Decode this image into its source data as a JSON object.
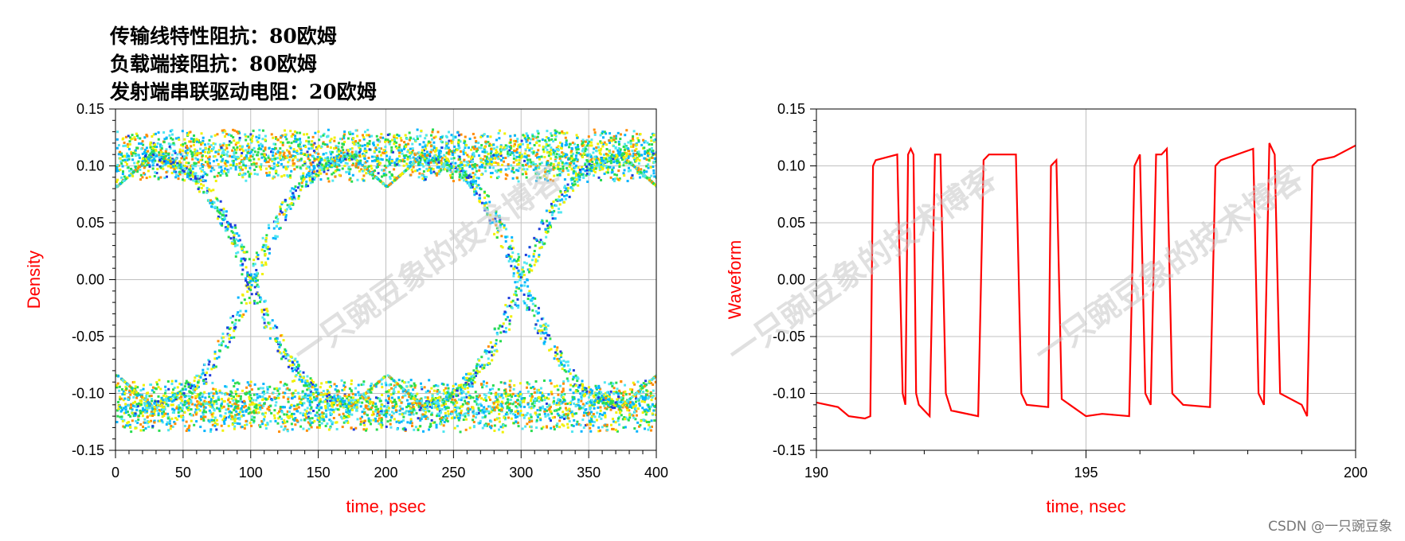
{
  "notes": [
    "传输线特性阻抗：80欧姆",
    "负载端接阻抗：80欧姆",
    "发射端串联驱动电阻：20欧姆"
  ],
  "watermark": "一只豌豆象的技术博客",
  "credit": "CSDN @一只豌豆象",
  "colors": {
    "axis_title": "#ff0000",
    "waveform": "#ff0000",
    "grid": "#c0c0c0"
  },
  "chart_data": [
    {
      "type": "heatmap",
      "title": "",
      "xlabel": "time, psec",
      "ylabel": "Density",
      "xlim": [
        0,
        400
      ],
      "ylim": [
        -0.15,
        0.15
      ],
      "x_ticks": [
        "0",
        "50",
        "100",
        "150",
        "200",
        "250",
        "300",
        "350",
        "400"
      ],
      "y_ticks": [
        "0.15",
        "0.10",
        "0.05",
        "0.00",
        "-0.05",
        "-0.10",
        "-0.15"
      ],
      "grid": true,
      "unit_interval_ps": 200,
      "crossings_ps": [
        0,
        100,
        300
      ],
      "levels": {
        "high": 0.11,
        "low": -0.11
      },
      "colormap": [
        "#1e3cdc",
        "#00b4ff",
        "#50e6f0",
        "#28dc50",
        "#f0f000",
        "#ff8c00"
      ]
    },
    {
      "type": "line",
      "title": "",
      "xlabel": "time, nsec",
      "ylabel": "Waveform",
      "xlim": [
        190,
        200
      ],
      "ylim": [
        -0.15,
        0.15
      ],
      "x_ticks": [
        "190",
        "195",
        "200"
      ],
      "y_ticks": [
        "0.15",
        "0.10",
        "0.05",
        "0.00",
        "-0.05",
        "-0.10",
        "-0.15"
      ],
      "grid": true,
      "series": [
        {
          "x": [
            190.0,
            190.4,
            190.6,
            190.9,
            191.0,
            191.05,
            191.1,
            191.5,
            191.6,
            191.65,
            191.7,
            191.75,
            191.8,
            191.85,
            191.9,
            192.1,
            192.2,
            192.3,
            192.4,
            192.5,
            193.0,
            193.1,
            193.2,
            193.7,
            193.8,
            193.9,
            194.3,
            194.35,
            194.45,
            194.55,
            194.7,
            195.0,
            195.3,
            195.8,
            195.9,
            196.0,
            196.1,
            196.2,
            196.3,
            196.4,
            196.5,
            196.6,
            196.8,
            197.3,
            197.4,
            197.5,
            198.1,
            198.2,
            198.3,
            198.4,
            198.5,
            198.6,
            199.0,
            199.1,
            199.2,
            199.3,
            199.6,
            200.0
          ],
          "y": [
            -0.108,
            -0.112,
            -0.12,
            -0.122,
            -0.12,
            0.1,
            0.105,
            0.11,
            -0.1,
            -0.11,
            0.11,
            0.115,
            0.11,
            -0.1,
            -0.11,
            -0.12,
            0.11,
            0.11,
            -0.1,
            -0.115,
            -0.12,
            0.105,
            0.11,
            0.11,
            -0.1,
            -0.11,
            -0.112,
            0.1,
            0.105,
            -0.105,
            -0.11,
            -0.12,
            -0.118,
            -0.12,
            0.1,
            0.11,
            -0.1,
            -0.11,
            0.11,
            0.11,
            0.115,
            -0.1,
            -0.11,
            -0.112,
            0.1,
            0.105,
            0.115,
            -0.1,
            -0.11,
            0.12,
            0.11,
            -0.1,
            -0.11,
            -0.12,
            0.1,
            0.105,
            0.108,
            0.118
          ]
        }
      ]
    }
  ]
}
